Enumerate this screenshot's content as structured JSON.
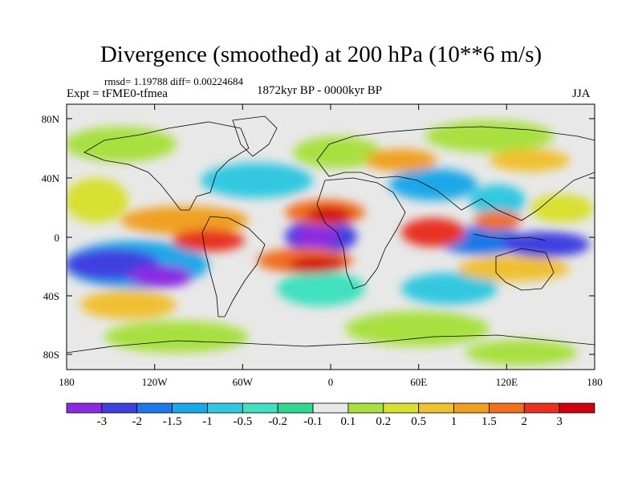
{
  "header": {
    "title": "Divergence (smoothed) at 200 hPa (10**6 m/s)",
    "stats": "rmsd= 1.19788 diff= 0.00224684",
    "expt": "Expt = tFME0-tfmea",
    "period": "1872kyr BP - 0000kyr BP",
    "season": "JJA"
  },
  "axes": {
    "y_ticks": [
      "80N",
      "40N",
      "0",
      "40S",
      "80S"
    ],
    "x_ticks": [
      "180",
      "120W",
      "60W",
      "0",
      "60E",
      "120E",
      "180"
    ]
  },
  "colorbar": {
    "labels": [
      "-3",
      "-2",
      "-1.5",
      "-1",
      "-0.5",
      "-0.2",
      "-0.1",
      "0.1",
      "0.2",
      "0.5",
      "1",
      "1.5",
      "2",
      "3"
    ],
    "colors": [
      "#8a2be2",
      "#4040e0",
      "#1e78e8",
      "#1aa8e8",
      "#30c8e0",
      "#40e0c0",
      "#30d890",
      "#e8e8e8",
      "#a8e040",
      "#d8e030",
      "#f0c030",
      "#f0a020",
      "#f07020",
      "#e83020",
      "#d00010"
    ],
    "background_color": "#e8e8e8"
  },
  "map_colors": {
    "land_outline": "#000000"
  }
}
